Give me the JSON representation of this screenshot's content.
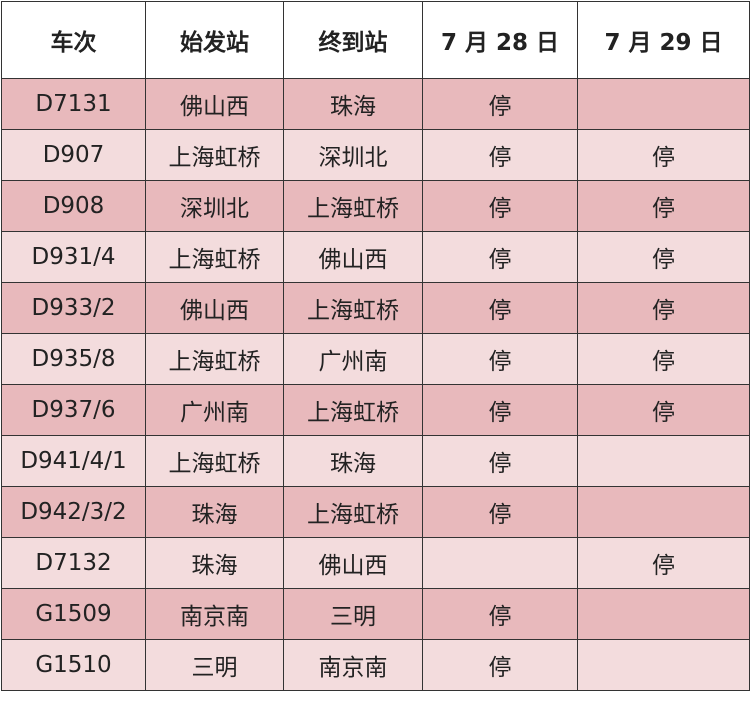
{
  "table": {
    "header": [
      "车次",
      "始发站",
      "终到站",
      "7 月 28 日",
      "7 月 29 日"
    ],
    "rows": [
      [
        "D7131",
        "佛山西",
        "珠海",
        "停",
        null
      ],
      [
        "D907",
        "上海虹桥",
        "深圳北",
        "停",
        "停"
      ],
      [
        "D908",
        "深圳北",
        "上海虹桥",
        "停",
        "停"
      ],
      [
        "D931/4",
        "上海虹桥",
        "佛山西",
        "停",
        "停"
      ],
      [
        "D933/2",
        "佛山西",
        "上海虹桥",
        "停",
        "停"
      ],
      [
        "D935/8",
        "上海虹桥",
        "广州南",
        "停",
        "停"
      ],
      [
        "D937/6",
        "广州南",
        "上海虹桥",
        "停",
        "停"
      ],
      [
        "D941/4/1",
        "上海虹桥",
        "珠海",
        "停",
        null
      ],
      [
        "D942/3/2",
        "珠海",
        "上海虹桥",
        "停",
        null
      ],
      [
        "D7132",
        "珠海",
        "佛山西",
        null,
        "停"
      ],
      [
        "G1509",
        "南京南",
        "三明",
        "停",
        null
      ],
      [
        "G1510",
        "三明",
        "南京南",
        "停",
        null
      ]
    ]
  }
}
